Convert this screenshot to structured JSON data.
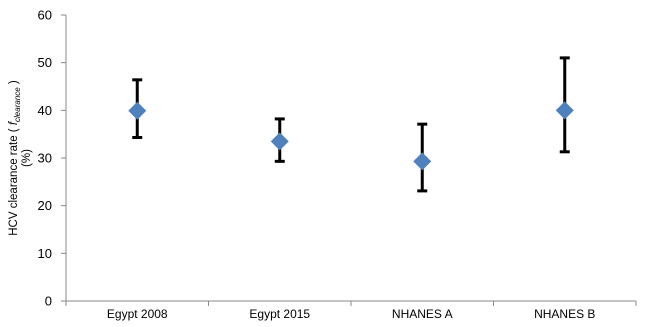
{
  "chart_data": {
    "type": "scatter",
    "categories": [
      "Egypt 2008",
      "Egypt 2015",
      "NHANES A",
      "NHANES B"
    ],
    "series": [
      {
        "values": [
          39.9,
          33.5,
          29.3,
          40.0
        ],
        "error_low": [
          34.3,
          29.3,
          23.1,
          31.3
        ],
        "error_high": [
          46.4,
          38.2,
          37.1,
          51.0
        ]
      }
    ],
    "ylabel_line1_prefix": "HCV clearance rate ( ",
    "ylabel_line1_symbol": "f",
    "ylabel_line1_subscript": "clearance",
    "ylabel_line1_suffix": " )",
    "ylabel_line2": "(%)",
    "yticks": [
      0,
      10,
      20,
      30,
      40,
      50,
      60
    ],
    "ylim": [
      0,
      60
    ],
    "marker_color": "#4f81bd",
    "errorbar_color": "#000000",
    "grid": false
  }
}
